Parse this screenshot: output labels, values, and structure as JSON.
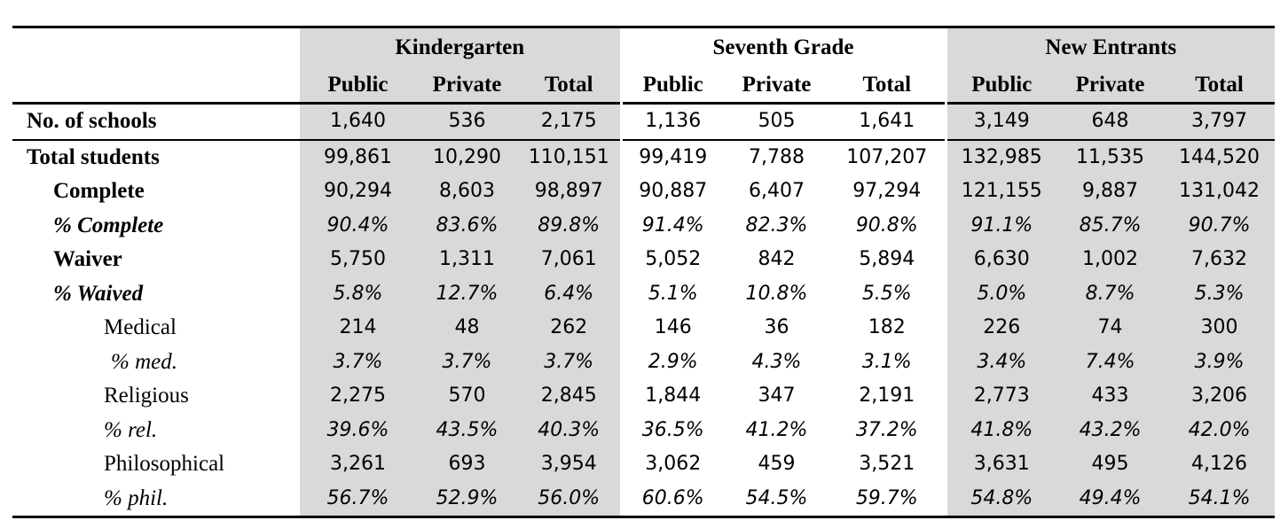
{
  "groups": [
    "Kindergarten",
    "Seventh Grade",
    "New Entrants"
  ],
  "subheaders": [
    "Public",
    "Private",
    "Total"
  ],
  "rows": [
    {
      "label": "No. of schools",
      "values": [
        "1,640",
        "536",
        "2,175",
        "1,136",
        "505",
        "1,641",
        "3,149",
        "648",
        "3,797"
      ]
    },
    {
      "label": "Total students",
      "values": [
        "99,861",
        "10,290",
        "110,151",
        "99,419",
        "7,788",
        "107,207",
        "132,985",
        "11,535",
        "144,520"
      ]
    },
    {
      "label": "Complete",
      "values": [
        "90,294",
        "8,603",
        "98,897",
        "90,887",
        "6,407",
        "97,294",
        "121,155",
        "9,887",
        "131,042"
      ]
    },
    {
      "label": "% Complete",
      "values": [
        "90.4%",
        "83.6%",
        "89.8%",
        "91.4%",
        "82.3%",
        "90.8%",
        "91.1%",
        "85.7%",
        "90.7%"
      ]
    },
    {
      "label": "Waiver",
      "values": [
        "5,750",
        "1,311",
        "7,061",
        "5,052",
        "842",
        "5,894",
        "6,630",
        "1,002",
        "7,632"
      ]
    },
    {
      "label": "% Waived",
      "values": [
        "5.8%",
        "12.7%",
        "6.4%",
        "5.1%",
        "10.8%",
        "5.5%",
        "5.0%",
        "8.7%",
        "5.3%"
      ]
    },
    {
      "label": "Medical",
      "values": [
        "214",
        "48",
        "262",
        "146",
        "36",
        "182",
        "226",
        "74",
        "300"
      ]
    },
    {
      "label": "% med.",
      "values": [
        "3.7%",
        "3.7%",
        "3.7%",
        "2.9%",
        "4.3%",
        "3.1%",
        "3.4%",
        "7.4%",
        "3.9%"
      ]
    },
    {
      "label": "Religious",
      "values": [
        "2,275",
        "570",
        "2,845",
        "1,844",
        "347",
        "2,191",
        "2,773",
        "433",
        "3,206"
      ]
    },
    {
      "label": "% rel.",
      "values": [
        "39.6%",
        "43.5%",
        "40.3%",
        "36.5%",
        "41.2%",
        "37.2%",
        "41.8%",
        "43.2%",
        "42.0%"
      ]
    },
    {
      "label": "Philosophical",
      "values": [
        "3,261",
        "693",
        "3,954",
        "3,062",
        "459",
        "3,521",
        "3,631",
        "495",
        "4,126"
      ]
    },
    {
      "label": "% phil.",
      "values": [
        "56.7%",
        "52.9%",
        "56.0%",
        "60.6%",
        "54.5%",
        "59.7%",
        "54.8%",
        "49.4%",
        "54.1%"
      ]
    }
  ]
}
